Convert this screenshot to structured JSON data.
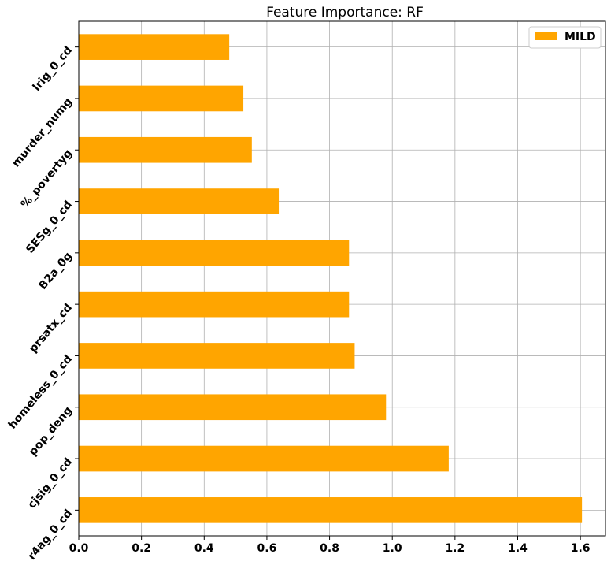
{
  "chart_data": {
    "type": "bar",
    "orientation": "horizontal",
    "title": "Feature Importance: RF",
    "xlabel": "",
    "ylabel": "",
    "categories": [
      "r4ag_0_cd",
      "cjsig_0_cd",
      "pop_deng",
      "homeless_0_cd",
      "prsatx_cd",
      "B2a_0g",
      "SESg_0_cd",
      "%_povertyg",
      "murder_numg",
      "lrig_0_cd"
    ],
    "series": [
      {
        "name": "MILD",
        "color": "#FFA500",
        "values": [
          1.605,
          1.18,
          0.98,
          0.88,
          0.862,
          0.862,
          0.638,
          0.552,
          0.525,
          0.48
        ]
      }
    ],
    "xlim": [
      0,
      1.68
    ],
    "xticks": [
      "0.0",
      "0.2",
      "0.4",
      "0.6",
      "0.8",
      "1.0",
      "1.2",
      "1.4",
      "1.6"
    ],
    "grid": true,
    "legend_position": "top-right"
  }
}
